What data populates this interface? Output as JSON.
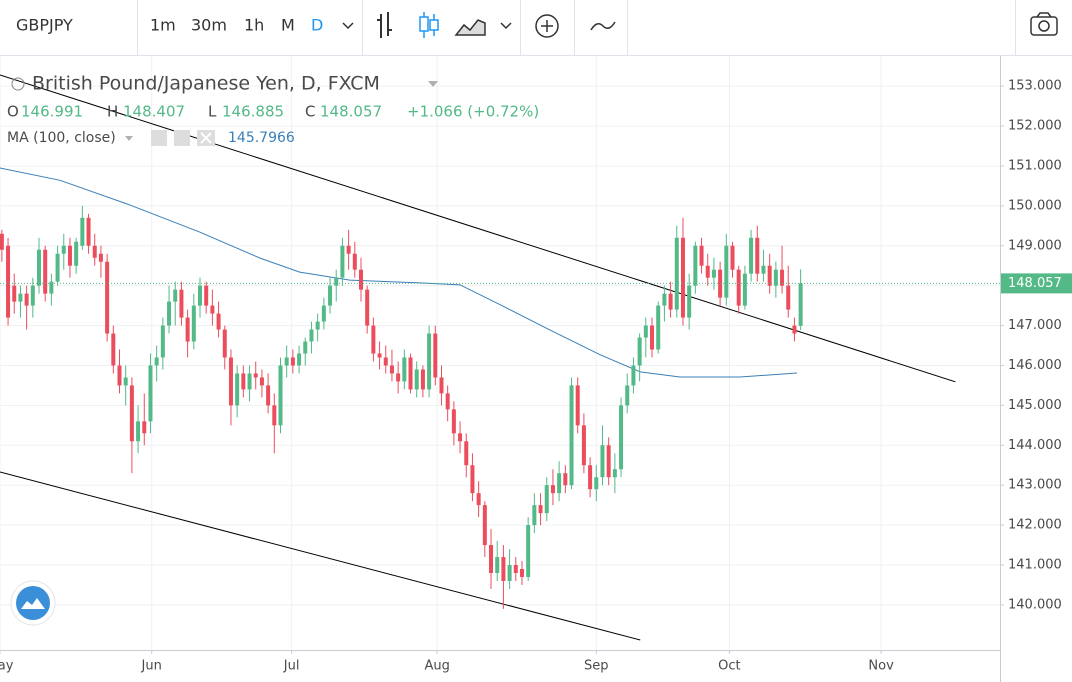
{
  "toolbar": {
    "symbol": "GBPJPY",
    "intervals": [
      "1m",
      "30m",
      "1h",
      "M",
      "D"
    ]
  },
  "chart_data": {
    "type": "candlestick",
    "title": "British Pound/Japanese Yen, D, FXCM",
    "ohlc_labels": [
      "O",
      "H",
      "L",
      "C"
    ],
    "change": "+1.066 (+0.72%)",
    "up_color": "#53b987",
    "down_color": "#eb4d5c",
    "open": [
      149.3,
      149.0,
      148.0,
      147.6,
      147.8,
      147.5,
      148.0,
      148.9,
      147.8,
      148.1,
      148.8,
      149.0,
      148.5,
      149.0,
      149.7,
      149.0,
      148.8,
      148.6,
      146.8,
      146.0,
      145.5,
      145.5,
      144.1,
      144.6,
      144.6,
      146.0,
      146.2,
      147.0,
      147.6,
      147.9,
      147.2,
      146.6,
      147.5,
      148.0,
      147.5,
      147.3,
      146.9,
      146.2,
      145.0,
      145.8,
      145.4,
      145.8,
      145.7,
      145.5,
      145.0,
      144.5,
      146.0,
      146.2,
      146.0,
      146.3,
      146.6,
      146.9,
      147.1,
      147.5,
      148.0,
      148.2,
      149.0,
      148.8,
      148.4,
      147.9,
      147.0,
      146.3,
      146.2,
      146.0,
      145.8,
      145.6,
      146.2,
      145.4,
      145.9,
      145.4,
      146.8,
      145.7,
      145.3,
      144.9,
      144.3,
      144.1,
      143.5,
      142.8,
      142.5,
      141.5,
      140.8,
      141.2,
      140.6,
      141.0,
      140.9,
      140.7,
      142.0,
      142.5,
      142.3,
      143.0,
      142.8,
      143.3,
      143.0,
      145.5,
      144.5,
      143.5,
      142.9,
      143.2,
      144.0,
      143.2,
      143.4,
      145.0,
      145.5,
      146.0,
      146.7,
      147.0,
      146.4,
      147.5,
      147.8,
      147.4,
      149.2,
      147.2,
      148.0,
      149.0,
      148.5,
      148.2,
      148.4,
      147.7,
      149.0,
      148.4,
      147.5,
      148.3,
      149.2,
      148.3,
      148.5,
      148.0,
      148.4,
      148.0,
      147.0,
      146.991
    ],
    "high": [
      149.4,
      149.2,
      148.3,
      148.0,
      148.0,
      148.2,
      149.2,
      149.0,
      148.3,
      149.0,
      149.3,
      149.2,
      149.2,
      150.0,
      149.8,
      149.3,
      149.0,
      148.8,
      147.0,
      146.4,
      146.0,
      145.7,
      145.0,
      145.3,
      146.3,
      146.5,
      147.2,
      148.0,
      148.1,
      148.1,
      147.4,
      147.8,
      148.2,
      148.1,
      147.9,
      147.6,
      147.0,
      146.4,
      146.0,
      146.0,
      146.0,
      146.1,
      145.9,
      145.8,
      145.3,
      146.2,
      146.5,
      146.4,
      146.5,
      146.7,
      147.1,
      147.3,
      147.7,
      148.2,
      148.4,
      149.2,
      149.4,
      149.1,
      148.7,
      148.0,
      147.2,
      146.6,
      146.5,
      146.4,
      146.1,
      146.4,
      146.3,
      146.1,
      146.0,
      147.0,
      147.0,
      146.0,
      145.5,
      145.1,
      144.6,
      144.3,
      143.8,
      143.1,
      142.6,
      141.9,
      141.6,
      141.5,
      141.4,
      141.2,
      141.1,
      142.2,
      142.8,
      142.8,
      143.2,
      143.4,
      143.6,
      143.5,
      145.7,
      145.7,
      144.8,
      143.7,
      143.5,
      144.5,
      144.2,
      143.8,
      145.2,
      145.8,
      146.2,
      146.8,
      147.2,
      147.2,
      147.6,
      148.0,
      148.1,
      149.5,
      149.7,
      148.3,
      149.1,
      149.2,
      148.8,
      148.7,
      148.6,
      149.3,
      149.1,
      148.5,
      148.5,
      149.4,
      149.5,
      148.9,
      148.8,
      148.6,
      149.0,
      148.5,
      147.2,
      148.407
    ],
    "low": [
      148.6,
      147.0,
      147.3,
      147.2,
      146.9,
      147.2,
      147.8,
      147.6,
      147.5,
      148.0,
      148.4,
      148.2,
      148.3,
      148.9,
      148.8,
      148.5,
      148.2,
      146.6,
      145.8,
      145.3,
      145.0,
      143.3,
      143.8,
      144.0,
      144.3,
      145.6,
      145.9,
      146.8,
      147.0,
      147.0,
      146.2,
      146.4,
      147.2,
      147.3,
      147.0,
      146.7,
      145.9,
      144.5,
      144.7,
      145.2,
      145.1,
      145.4,
      145.2,
      144.8,
      143.8,
      144.3,
      145.7,
      145.8,
      145.8,
      146.0,
      146.3,
      146.6,
      146.9,
      147.3,
      147.6,
      148.0,
      148.4,
      148.2,
      147.6,
      146.8,
      146.1,
      145.9,
      145.8,
      145.6,
      145.3,
      145.4,
      145.3,
      145.2,
      145.2,
      145.2,
      145.5,
      145.0,
      144.6,
      144.0,
      143.8,
      143.2,
      142.6,
      142.2,
      141.2,
      140.4,
      140.6,
      139.9,
      140.4,
      140.6,
      140.5,
      140.6,
      141.8,
      142.0,
      142.1,
      142.5,
      142.6,
      142.8,
      142.9,
      144.3,
      143.3,
      142.7,
      142.6,
      143.0,
      143.0,
      142.8,
      143.2,
      144.8,
      145.3,
      145.6,
      146.2,
      146.2,
      146.3,
      147.1,
      147.2,
      147.2,
      147.0,
      146.9,
      147.8,
      148.3,
      148.0,
      147.9,
      147.5,
      147.5,
      148.2,
      147.3,
      147.4,
      148.1,
      148.1,
      148.1,
      147.8,
      147.7,
      147.8,
      147.2,
      146.6,
      146.885
    ],
    "close": [
      148.9,
      147.2,
      147.6,
      147.8,
      147.5,
      148.0,
      148.9,
      147.8,
      148.1,
      148.8,
      149.0,
      148.5,
      149.1,
      149.7,
      149.0,
      148.7,
      148.6,
      146.8,
      146.0,
      145.5,
      145.7,
      144.1,
      144.6,
      144.3,
      146.0,
      146.2,
      147.0,
      147.6,
      147.9,
      147.2,
      146.6,
      147.5,
      148.0,
      147.5,
      147.3,
      146.9,
      146.2,
      145.0,
      145.8,
      145.4,
      145.8,
      145.7,
      145.5,
      145.0,
      144.5,
      146.0,
      146.2,
      146.0,
      146.3,
      146.6,
      146.9,
      147.1,
      147.5,
      148.0,
      148.2,
      149.0,
      148.8,
      148.4,
      147.9,
      147.0,
      146.3,
      146.2,
      146.0,
      145.8,
      145.6,
      146.2,
      145.4,
      145.9,
      145.4,
      146.8,
      145.7,
      145.3,
      144.9,
      144.3,
      144.1,
      143.5,
      142.8,
      142.5,
      141.5,
      140.8,
      141.2,
      140.6,
      141.0,
      140.8,
      140.7,
      142.0,
      142.5,
      142.3,
      143.0,
      142.8,
      143.3,
      143.0,
      145.5,
      144.5,
      143.5,
      142.9,
      143.2,
      144.0,
      143.2,
      143.4,
      145.0,
      145.5,
      146.0,
      146.7,
      147.0,
      146.4,
      147.5,
      147.8,
      147.4,
      149.2,
      147.2,
      148.0,
      149.0,
      148.5,
      148.2,
      148.4,
      147.7,
      149.0,
      148.4,
      147.5,
      148.3,
      149.2,
      148.3,
      148.5,
      148.0,
      148.4,
      148.0,
      147.4,
      146.8,
      148.057
    ],
    "xlim": [
      -0.3,
      161.2
    ],
    "xticks": [
      {
        "value": -0.3,
        "label": "May"
      },
      {
        "value": 24.2,
        "label": "Jun"
      },
      {
        "value": 46.8,
        "label": "Jul"
      },
      {
        "value": 70.3,
        "label": "Aug"
      },
      {
        "value": 96.0,
        "label": "Sep"
      },
      {
        "value": 117.5,
        "label": "Oct"
      },
      {
        "value": 142.0,
        "label": "Nov"
      }
    ],
    "ylim": [
      138.87,
      153.73
    ],
    "yticks": [
      {
        "value": 140,
        "label": "140.000"
      },
      {
        "value": 141,
        "label": "141.000"
      },
      {
        "value": 142,
        "label": "142.000"
      },
      {
        "value": 143,
        "label": "143.000"
      },
      {
        "value": 144,
        "label": "144.000"
      },
      {
        "value": 145,
        "label": "145.000"
      },
      {
        "value": 146,
        "label": "146.000"
      },
      {
        "value": 147,
        "label": "147.000"
      },
      {
        "value": 148,
        "label": "148.000"
      },
      {
        "value": 149,
        "label": "149.000"
      },
      {
        "value": 150,
        "label": "150.000"
      },
      {
        "value": 151,
        "label": "151.000"
      },
      {
        "value": 152,
        "label": "152.000"
      },
      {
        "value": 153,
        "label": "153.000"
      }
    ],
    "grid": true,
    "moving_average": {
      "name": "MA (100, close)",
      "value": 145.7966,
      "color": "#3a7fb8",
      "x": [
        -0.3,
        9.4,
        20.7,
        32.0,
        41.7,
        48.1,
        56.2,
        67.5,
        74.0,
        80.5,
        88.5,
        96.6,
        103.1,
        109.5,
        119.2,
        128.4
      ],
      "y": [
        150.95,
        150.64,
        150.02,
        149.34,
        148.69,
        148.34,
        148.14,
        148.07,
        148.02,
        147.52,
        146.89,
        146.27,
        145.84,
        145.71,
        145.71,
        145.81
      ]
    },
    "trendlines": [
      {
        "color": "#000000",
        "x": [
          -0.3,
          154.0
        ],
        "y": [
          153.28,
          145.59
        ]
      },
      {
        "color": "#000000",
        "x": [
          -0.3,
          103.1
        ],
        "y": [
          143.33,
          139.12
        ]
      }
    ]
  }
}
